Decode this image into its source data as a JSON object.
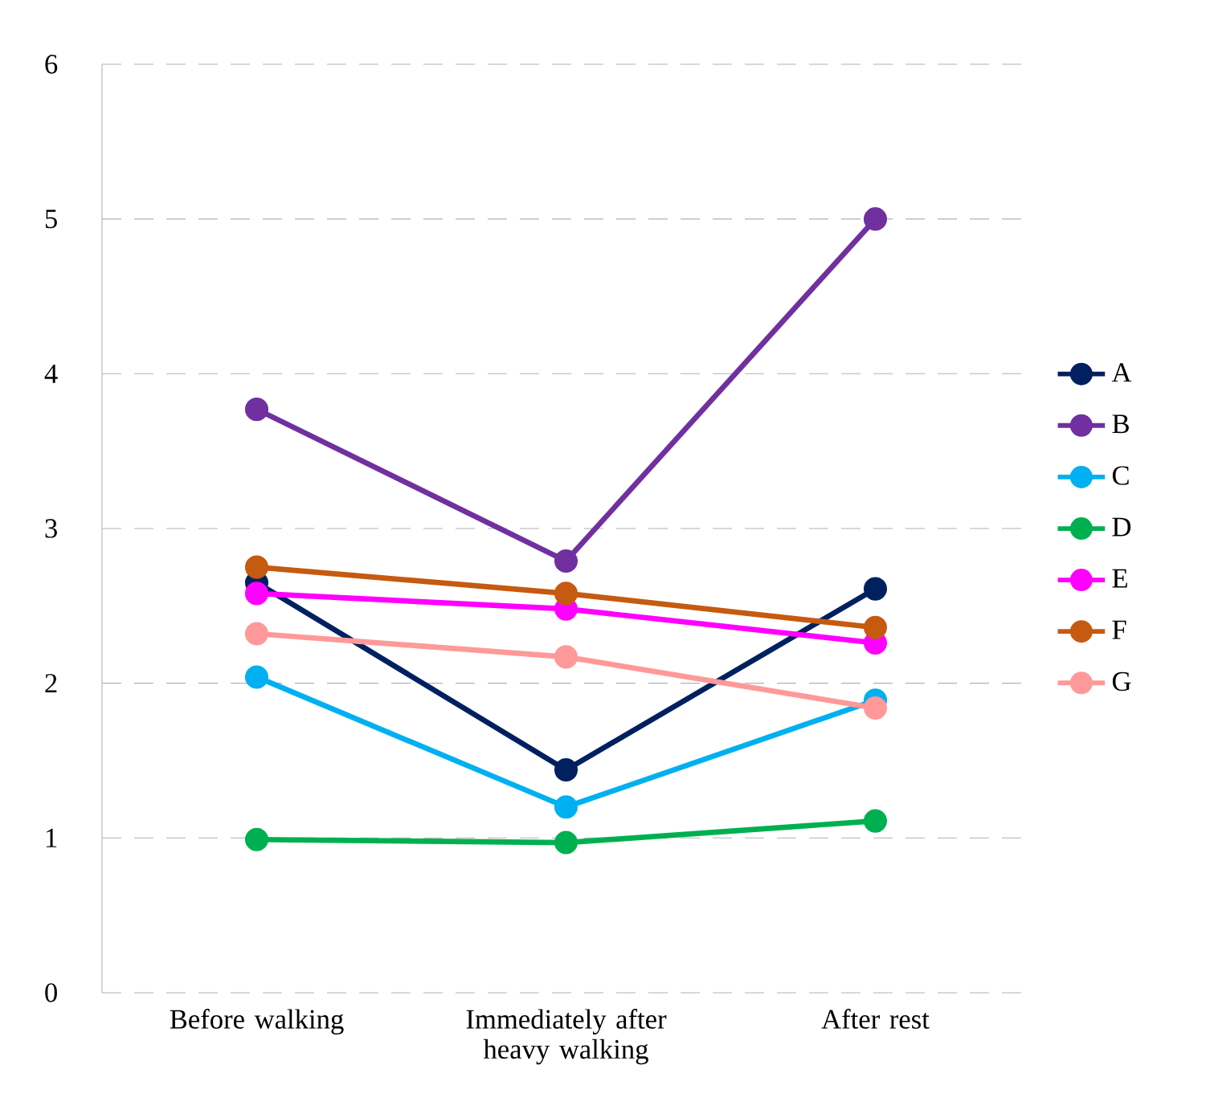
{
  "chart_data": {
    "type": "line",
    "categories": [
      "Before walking",
      "Immediately after heavy walking",
      "After rest"
    ],
    "series": [
      {
        "name": "A",
        "color": "#002060",
        "values": [
          2.65,
          1.44,
          2.61
        ]
      },
      {
        "name": "B",
        "color": "#7030a0",
        "values": [
          3.77,
          2.79,
          5.0
        ]
      },
      {
        "name": "C",
        "color": "#00b0f0",
        "values": [
          2.04,
          1.2,
          1.89
        ]
      },
      {
        "name": "D",
        "color": "#00b050",
        "values": [
          0.99,
          0.97,
          1.11
        ]
      },
      {
        "name": "E",
        "color": "#ff00ff",
        "values": [
          2.58,
          2.48,
          2.26
        ]
      },
      {
        "name": "F",
        "color": "#c55a11",
        "values": [
          2.75,
          2.58,
          2.36
        ]
      },
      {
        "name": "G",
        "color": "#ff9999",
        "values": [
          2.32,
          2.17,
          1.84
        ]
      }
    ],
    "ylim": [
      0,
      6
    ],
    "yticks": [
      0,
      1,
      2,
      3,
      4,
      5,
      6
    ],
    "grid": "y",
    "legend": "right",
    "marker": "circle",
    "line_style": "solid"
  }
}
